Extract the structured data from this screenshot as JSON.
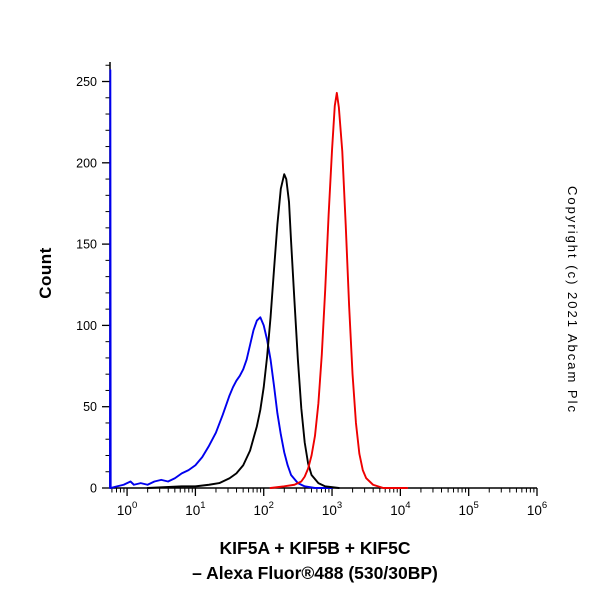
{
  "chart_data": {
    "type": "line",
    "subtype": "flow-cytometry-histogram-overlay",
    "title_lines": [
      "KIF5A + KIF5B + KIF5C",
      "– Alexa Fluor®488 (530/30BP)"
    ],
    "ylabel": "Count",
    "copyright": "Copyright (c) 2021 Abcam Plc",
    "x_scale": "log10",
    "x_domain_log": [
      -0.25,
      6
    ],
    "x_tick_base": "10",
    "x_ticks_exponents": [
      0,
      1,
      2,
      3,
      4,
      5,
      6
    ],
    "y_ticks": [
      0,
      50,
      100,
      150,
      200,
      250
    ],
    "y_minor_step": 10,
    "y_domain": [
      0,
      262
    ],
    "grid": false,
    "legend": "none",
    "axis_color": "#000000",
    "background_color": "#ffffff",
    "series": [
      {
        "name": "blue-control-histogram",
        "color": "#0000ee",
        "peak": {
          "x_log10": 1.95,
          "count": 105
        },
        "points": [
          [
            -0.25,
            0
          ],
          [
            -0.245,
            257
          ],
          [
            -0.24,
            0
          ],
          [
            -0.15,
            1
          ],
          [
            -0.05,
            2
          ],
          [
            0.05,
            4
          ],
          [
            0.1,
            2
          ],
          [
            0.2,
            3
          ],
          [
            0.3,
            2
          ],
          [
            0.4,
            4
          ],
          [
            0.5,
            5
          ],
          [
            0.6,
            4
          ],
          [
            0.7,
            6
          ],
          [
            0.8,
            9
          ],
          [
            0.9,
            11
          ],
          [
            1.0,
            14
          ],
          [
            1.1,
            19
          ],
          [
            1.2,
            26
          ],
          [
            1.3,
            34
          ],
          [
            1.4,
            45
          ],
          [
            1.5,
            57
          ],
          [
            1.55,
            62
          ],
          [
            1.6,
            66
          ],
          [
            1.65,
            69
          ],
          [
            1.7,
            73
          ],
          [
            1.75,
            79
          ],
          [
            1.8,
            88
          ],
          [
            1.85,
            97
          ],
          [
            1.9,
            103
          ],
          [
            1.95,
            105
          ],
          [
            2.0,
            100
          ],
          [
            2.05,
            91
          ],
          [
            2.1,
            79
          ],
          [
            2.15,
            63
          ],
          [
            2.2,
            46
          ],
          [
            2.25,
            33
          ],
          [
            2.3,
            22
          ],
          [
            2.35,
            14
          ],
          [
            2.4,
            8
          ],
          [
            2.5,
            3
          ],
          [
            2.6,
            1
          ],
          [
            2.75,
            0
          ],
          [
            3.0,
            0
          ]
        ]
      },
      {
        "name": "black-control-histogram",
        "color": "#000000",
        "peak": {
          "x_log10": 2.3,
          "count": 193
        },
        "points": [
          [
            0.3,
            0
          ],
          [
            0.8,
            1
          ],
          [
            1.0,
            1
          ],
          [
            1.2,
            2
          ],
          [
            1.35,
            3
          ],
          [
            1.5,
            6
          ],
          [
            1.6,
            9
          ],
          [
            1.7,
            14
          ],
          [
            1.8,
            23
          ],
          [
            1.9,
            38
          ],
          [
            1.95,
            48
          ],
          [
            2.0,
            62
          ],
          [
            2.05,
            81
          ],
          [
            2.1,
            105
          ],
          [
            2.15,
            134
          ],
          [
            2.2,
            162
          ],
          [
            2.25,
            184
          ],
          [
            2.3,
            193
          ],
          [
            2.33,
            190
          ],
          [
            2.37,
            176
          ],
          [
            2.4,
            152
          ],
          [
            2.45,
            115
          ],
          [
            2.5,
            79
          ],
          [
            2.55,
            49
          ],
          [
            2.6,
            28
          ],
          [
            2.65,
            15
          ],
          [
            2.7,
            8
          ],
          [
            2.8,
            3
          ],
          [
            2.9,
            1
          ],
          [
            3.1,
            0
          ]
        ]
      },
      {
        "name": "red-kif5-histogram",
        "color": "#ee0000",
        "peak": {
          "x_log10": 3.07,
          "count": 243
        },
        "points": [
          [
            2.1,
            0
          ],
          [
            2.3,
            1
          ],
          [
            2.45,
            2
          ],
          [
            2.55,
            4
          ],
          [
            2.6,
            7
          ],
          [
            2.65,
            12
          ],
          [
            2.7,
            20
          ],
          [
            2.75,
            32
          ],
          [
            2.8,
            52
          ],
          [
            2.85,
            82
          ],
          [
            2.9,
            122
          ],
          [
            2.95,
            168
          ],
          [
            3.0,
            208
          ],
          [
            3.04,
            235
          ],
          [
            3.07,
            243
          ],
          [
            3.1,
            234
          ],
          [
            3.15,
            207
          ],
          [
            3.2,
            162
          ],
          [
            3.25,
            112
          ],
          [
            3.3,
            70
          ],
          [
            3.35,
            40
          ],
          [
            3.4,
            21
          ],
          [
            3.45,
            11
          ],
          [
            3.5,
            6
          ],
          [
            3.6,
            2
          ],
          [
            3.75,
            0
          ],
          [
            4.1,
            0
          ]
        ]
      }
    ]
  }
}
